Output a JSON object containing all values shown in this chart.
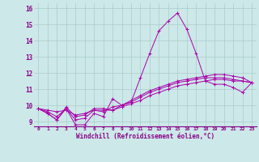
{
  "xlabel": "Windchill (Refroidissement éolien,°C)",
  "bg_color": "#cce8e8",
  "grid_color": "#aacccc",
  "line_color": "#aa00aa",
  "xlim": [
    -0.5,
    23.5
  ],
  "ylim": [
    8.7,
    16.3
  ],
  "yticks": [
    9,
    10,
    11,
    12,
    13,
    14,
    15,
    16
  ],
  "xticks": [
    0,
    1,
    2,
    3,
    4,
    5,
    6,
    7,
    8,
    9,
    10,
    11,
    12,
    13,
    14,
    15,
    16,
    17,
    18,
    19,
    20,
    21,
    22,
    23
  ],
  "series": [
    [
      9.8,
      9.5,
      9.1,
      9.8,
      8.8,
      8.8,
      9.5,
      9.3,
      10.4,
      10.0,
      10.2,
      11.7,
      13.2,
      14.6,
      15.2,
      15.7,
      14.7,
      13.2,
      11.5,
      11.3,
      11.3,
      11.1,
      10.8,
      11.4
    ],
    [
      9.8,
      9.7,
      9.6,
      9.7,
      9.4,
      9.5,
      9.7,
      9.7,
      9.7,
      9.9,
      10.1,
      10.3,
      10.6,
      10.8,
      11.0,
      11.2,
      11.3,
      11.4,
      11.5,
      11.6,
      11.6,
      11.5,
      11.5,
      11.4
    ],
    [
      9.8,
      9.6,
      9.3,
      9.8,
      9.1,
      9.2,
      9.7,
      9.6,
      9.9,
      10.0,
      10.2,
      10.5,
      10.8,
      11.0,
      11.2,
      11.4,
      11.5,
      11.6,
      11.7,
      11.7,
      11.7,
      11.6,
      11.5,
      11.4
    ],
    [
      9.8,
      9.5,
      9.1,
      9.9,
      9.3,
      9.4,
      9.8,
      9.8,
      9.7,
      10.0,
      10.3,
      10.6,
      10.9,
      11.1,
      11.3,
      11.5,
      11.6,
      11.7,
      11.8,
      11.9,
      11.9,
      11.8,
      11.7,
      11.4
    ]
  ]
}
